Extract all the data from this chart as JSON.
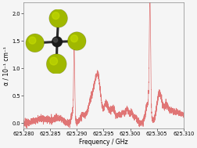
{
  "x_min": 625.28,
  "x_max": 625.31,
  "y_min": -0.1,
  "y_max": 2.2,
  "xlabel": "Frequency / GHz",
  "ylabel": "α / 10⁻¹ cm⁻¹",
  "line_color": "#e07575",
  "bg_color": "#f5f5f5",
  "xticks": [
    625.28,
    625.285,
    625.29,
    625.295,
    625.3,
    625.305,
    625.31
  ],
  "yticks": [
    0.0,
    0.5,
    1.0,
    1.5,
    2.0
  ],
  "tick_label_size": 4.8,
  "axis_label_size": 5.5,
  "carbon_color": "#1a1a1a",
  "fluorine_color": "#a0b800",
  "fluorine_highlight": "#c8e000",
  "bond_color": "#2a2a2a"
}
